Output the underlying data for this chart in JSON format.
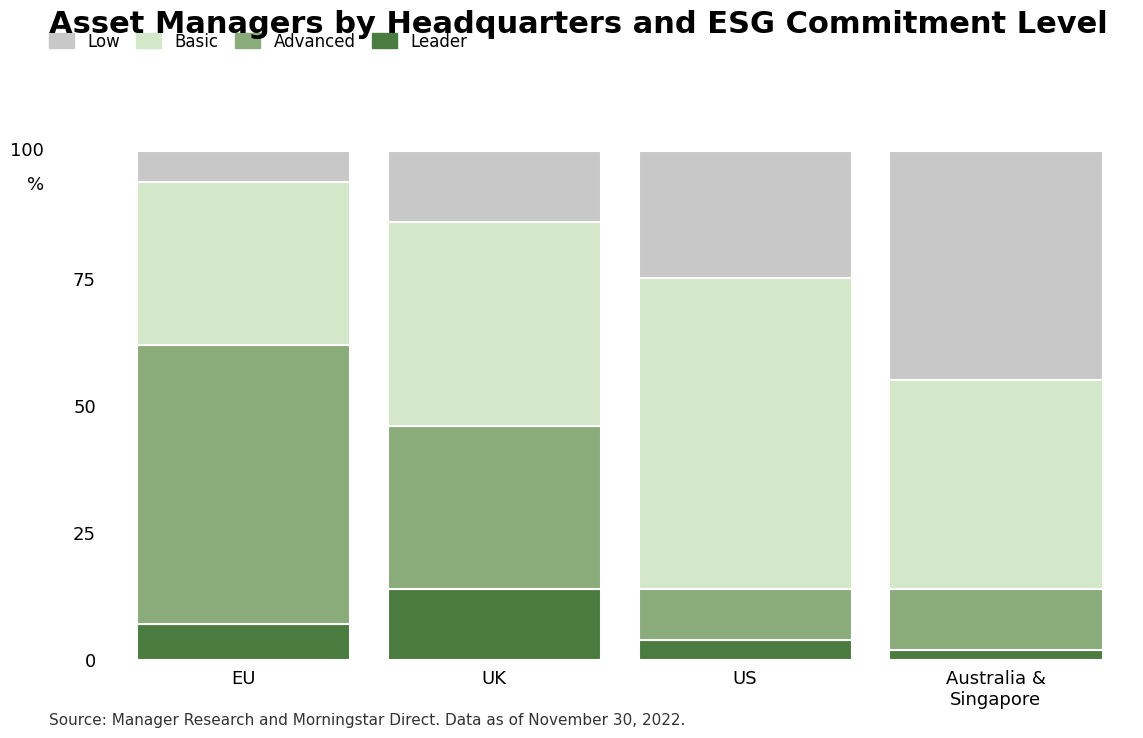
{
  "title": "Asset Managers by Headquarters and ESG Commitment Level",
  "categories": [
    "EU",
    "UK",
    "US",
    "Australia &\nSingapore"
  ],
  "segments": {
    "Leader": [
      7,
      14,
      4,
      2
    ],
    "Advanced": [
      55,
      32,
      10,
      12
    ],
    "Basic": [
      32,
      40,
      61,
      41
    ],
    "Low": [
      6,
      14,
      25,
      45
    ]
  },
  "colors": {
    "Leader": "#4a7c3f",
    "Advanced": "#8aac7a",
    "Basic": "#d3e8c8",
    "Low": "#c8c8c8"
  },
  "legend_order": [
    "Low",
    "Basic",
    "Advanced",
    "Leader"
  ],
  "yticks": [
    0,
    25,
    50,
    75,
    100
  ],
  "source": "Source: Manager Research and Morningstar Direct. Data as of November 30, 2022.",
  "background_color": "#ffffff",
  "bar_width": 0.85,
  "title_fontsize": 22,
  "legend_fontsize": 12,
  "tick_fontsize": 13,
  "source_fontsize": 11
}
